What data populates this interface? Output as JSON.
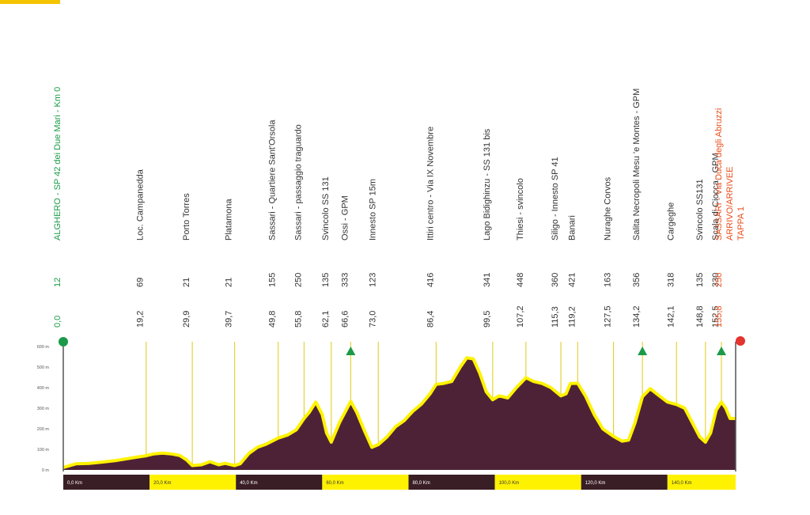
{
  "colors": {
    "profile_fill": "#4e2236",
    "profile_line": "#fff200",
    "marker_line": "#e5d33a",
    "start_green": "#1a9a48",
    "finish_red": "#e3342f",
    "gpm_green": "#1a9a48",
    "text_gray": "#333333",
    "text_red": "#e94e1b",
    "km_dark": "#3a1e25",
    "km_yellow": "#fff200",
    "corner_yellow": "#f5c400"
  },
  "chart_data": {
    "type": "area",
    "title": "",
    "xlabel": "",
    "ylabel": "",
    "xlim": [
      0,
      155.8
    ],
    "ylim": [
      0,
      600
    ],
    "y_ticks": [
      "0 m",
      "100 m",
      "200 m",
      "300 m",
      "400 m",
      "500 m",
      "600 m"
    ],
    "y_tick_values": [
      0,
      100,
      200,
      300,
      400,
      500,
      600
    ],
    "km_segments": [
      {
        "label": "0,0 Km",
        "from": 0,
        "to": 20,
        "style": "dark"
      },
      {
        "label": "20,0 Km",
        "from": 20,
        "to": 40,
        "style": "light"
      },
      {
        "label": "40,0 Km",
        "from": 40,
        "to": 60,
        "style": "dark"
      },
      {
        "label": "60,0 Km",
        "from": 60,
        "to": 80,
        "style": "light"
      },
      {
        "label": "80,0 Km",
        "from": 80,
        "to": 100,
        "style": "dark"
      },
      {
        "label": "100,0 Km",
        "from": 100,
        "to": 120,
        "style": "light"
      },
      {
        "label": "120,0 Km",
        "from": 120,
        "to": 140,
        "style": "dark"
      },
      {
        "label": "140,0 Km",
        "from": 140,
        "to": 155.8,
        "style": "light"
      }
    ],
    "profile": [
      [
        0,
        12
      ],
      [
        3,
        30
      ],
      [
        6,
        32
      ],
      [
        9,
        38
      ],
      [
        12,
        45
      ],
      [
        15,
        55
      ],
      [
        17,
        62
      ],
      [
        19.2,
        69
      ],
      [
        21,
        78
      ],
      [
        23,
        82
      ],
      [
        25,
        78
      ],
      [
        27,
        70
      ],
      [
        28.5,
        50
      ],
      [
        29.9,
        21
      ],
      [
        32,
        25
      ],
      [
        34,
        40
      ],
      [
        36,
        25
      ],
      [
        37.5,
        32
      ],
      [
        39.7,
        21
      ],
      [
        41,
        30
      ],
      [
        43,
        80
      ],
      [
        45,
        110
      ],
      [
        47,
        125
      ],
      [
        49.8,
        155
      ],
      [
        52,
        170
      ],
      [
        54,
        195
      ],
      [
        55.8,
        250
      ],
      [
        57,
        280
      ],
      [
        58.5,
        330
      ],
      [
        60,
        270
      ],
      [
        61,
        180
      ],
      [
        62.1,
        135
      ],
      [
        64,
        230
      ],
      [
        66.6,
        333
      ],
      [
        68,
        280
      ],
      [
        70,
        180
      ],
      [
        71.5,
        110
      ],
      [
        73,
        123
      ],
      [
        75,
        160
      ],
      [
        77,
        210
      ],
      [
        79,
        240
      ],
      [
        81,
        285
      ],
      [
        83,
        320
      ],
      [
        85,
        370
      ],
      [
        86.4,
        416
      ],
      [
        88,
        420
      ],
      [
        90,
        430
      ],
      [
        92,
        500
      ],
      [
        93.5,
        545
      ],
      [
        95,
        540
      ],
      [
        96.5,
        470
      ],
      [
        98,
        380
      ],
      [
        99.5,
        341
      ],
      [
        101,
        360
      ],
      [
        103,
        350
      ],
      [
        105,
        400
      ],
      [
        107.2,
        448
      ],
      [
        109,
        430
      ],
      [
        111,
        420
      ],
      [
        113,
        400
      ],
      [
        115.3,
        360
      ],
      [
        116.5,
        370
      ],
      [
        117.5,
        420
      ],
      [
        119.2,
        421
      ],
      [
        121,
        360
      ],
      [
        123,
        270
      ],
      [
        125,
        200
      ],
      [
        127.5,
        163
      ],
      [
        129.5,
        140
      ],
      [
        131,
        145
      ],
      [
        132.5,
        230
      ],
      [
        134.2,
        356
      ],
      [
        136,
        395
      ],
      [
        137.5,
        370
      ],
      [
        140,
        330
      ],
      [
        142.1,
        318
      ],
      [
        144,
        300
      ],
      [
        146,
        220
      ],
      [
        147.5,
        160
      ],
      [
        148.8,
        135
      ],
      [
        150,
        180
      ],
      [
        151.3,
        290
      ],
      [
        152.5,
        330
      ],
      [
        153.5,
        300
      ],
      [
        154.5,
        250
      ],
      [
        155.8,
        250
      ]
    ],
    "points": [
      {
        "km": null,
        "km_label": "0,0",
        "altitude": "12",
        "name": "ALGHERO - SP 42 dei Due Mari - Km 0",
        "x": 0,
        "color": "green",
        "marker": "start"
      },
      {
        "km": 19.2,
        "km_label": "19,2",
        "altitude": "69",
        "name": "Loc. Campanedda",
        "x": 19.2,
        "color": "gray",
        "marker": "line"
      },
      {
        "km": 29.9,
        "km_label": "29,9",
        "altitude": "21",
        "name": "Porto Torres",
        "x": 29.9,
        "color": "gray",
        "marker": "line"
      },
      {
        "km": 39.7,
        "km_label": "39,7",
        "altitude": "21",
        "name": "Platamona",
        "x": 39.7,
        "color": "gray",
        "marker": "line"
      },
      {
        "km": 49.8,
        "km_label": "49,8",
        "altitude": "155",
        "name": "Sassari - Quartiere Sant'Orsola",
        "x": 49.8,
        "color": "gray",
        "marker": "line"
      },
      {
        "km": 55.8,
        "km_label": "55,8",
        "altitude": "250",
        "name": "Sassari - passaggio traguardo",
        "x": 55.8,
        "color": "gray",
        "marker": "line"
      },
      {
        "km": 62.1,
        "km_label": "62,1",
        "altitude": "135",
        "name": "Svincolo SS 131",
        "x": 62.1,
        "color": "gray",
        "marker": "line"
      },
      {
        "km": 66.6,
        "km_label": "66,6",
        "altitude": "333",
        "name": "Ossi - GPM",
        "x": 66.6,
        "color": "gray",
        "marker": "gpm"
      },
      {
        "km": 73.0,
        "km_label": "73,0",
        "altitude": "123",
        "name": "Innesto SP 15m",
        "x": 73.0,
        "color": "gray",
        "marker": "line"
      },
      {
        "km": 86.4,
        "km_label": "86,4",
        "altitude": "416",
        "name": "Ittiri centro - Via IX Novembre",
        "x": 86.4,
        "color": "gray",
        "marker": "line"
      },
      {
        "km": 99.5,
        "km_label": "99,5",
        "altitude": "341",
        "name": "Lago Bidighinzu - SS 131 bis",
        "x": 99.5,
        "color": "gray",
        "marker": "line"
      },
      {
        "km": 107.2,
        "km_label": "107,2",
        "altitude": "448",
        "name": "Thiesi - svincolo",
        "x": 107.2,
        "color": "gray",
        "marker": "line"
      },
      {
        "km": 115.3,
        "km_label": "115,3",
        "altitude": "360",
        "name": "Siligo - Innesto SP 41",
        "x": 115.3,
        "color": "gray",
        "marker": "line"
      },
      {
        "km": 119.2,
        "km_label": "119,2",
        "altitude": "421",
        "name": "Banari",
        "x": 119.2,
        "color": "gray",
        "marker": "line"
      },
      {
        "km": 127.5,
        "km_label": "127,5",
        "altitude": "163",
        "name": "Nuraghe Corvos",
        "x": 127.5,
        "color": "gray",
        "marker": "line"
      },
      {
        "km": 134.2,
        "km_label": "134,2",
        "altitude": "356",
        "name": "Salita Necropoli Mesu 'e Montes - GPM",
        "x": 134.2,
        "color": "gray",
        "marker": "gpm"
      },
      {
        "km": 142.1,
        "km_label": "142,1",
        "altitude": "318",
        "name": "Cargeghe",
        "x": 142.1,
        "color": "gray",
        "marker": "line"
      },
      {
        "km": 148.8,
        "km_label": "148,8",
        "altitude": "135",
        "name": "Svincolo SS131",
        "x": 148.8,
        "color": "gray",
        "marker": "line"
      },
      {
        "km": 152.5,
        "km_label": "152,5",
        "altitude": "330",
        "name": "Scala di Ciocca - GPM",
        "x": 152.5,
        "color": "gray",
        "marker": "gpm"
      },
      {
        "km": 155.8,
        "km_label": "155,8",
        "altitude": "250",
        "name": "SASSARI - Via Duca degli Abruzzi",
        "name2": "ARRIVO/ARRIVEE",
        "name3": "TAPPA 1",
        "x": 155.8,
        "color": "red",
        "marker": "finish"
      }
    ]
  }
}
